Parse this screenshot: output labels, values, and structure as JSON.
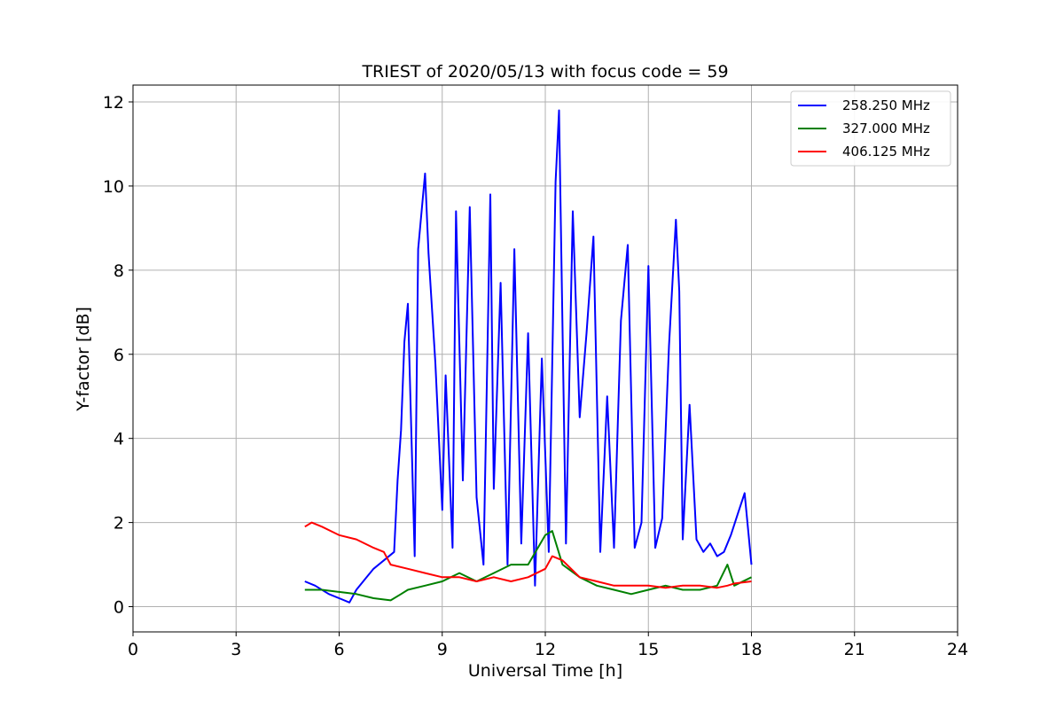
{
  "chart_data": {
    "type": "line",
    "title": "TRIEST of 2020/05/13 with focus code = 59",
    "xlabel": "Universal Time [h]",
    "ylabel": "Y-factor [dB]",
    "xlim": [
      0,
      24
    ],
    "ylim": [
      -0.6,
      12.4
    ],
    "xticks": [
      0,
      3,
      6,
      9,
      12,
      15,
      18,
      21,
      24
    ],
    "yticks": [
      0,
      2,
      4,
      6,
      8,
      10,
      12
    ],
    "xtick_labels": [
      "0",
      "3",
      "6",
      "9",
      "12",
      "15",
      "18",
      "21",
      "24"
    ],
    "ytick_labels": [
      "0",
      "2",
      "4",
      "6",
      "8",
      "10",
      "12"
    ],
    "grid": true,
    "legend_position": "top-right",
    "series": [
      {
        "name": "258.250 MHz",
        "color": "#0000ff",
        "x": [
          5.0,
          5.3,
          5.7,
          6.0,
          6.3,
          6.5,
          6.8,
          7.0,
          7.3,
          7.6,
          7.7,
          7.8,
          7.9,
          8.0,
          8.2,
          8.3,
          8.5,
          8.6,
          8.8,
          9.0,
          9.1,
          9.3,
          9.4,
          9.6,
          9.8,
          10.0,
          10.2,
          10.4,
          10.5,
          10.7,
          10.9,
          11.1,
          11.3,
          11.5,
          11.7,
          11.9,
          12.1,
          12.3,
          12.4,
          12.6,
          12.8,
          13.0,
          13.2,
          13.4,
          13.6,
          13.8,
          14.0,
          14.2,
          14.4,
          14.6,
          14.8,
          15.0,
          15.2,
          15.4,
          15.6,
          15.8,
          15.9,
          16.0,
          16.2,
          16.4,
          16.6,
          16.8,
          17.0,
          17.2,
          17.4,
          17.6,
          17.8,
          18.0
        ],
        "y": [
          0.6,
          0.5,
          0.3,
          0.2,
          0.1,
          0.4,
          0.7,
          0.9,
          1.1,
          1.3,
          3.0,
          4.2,
          6.3,
          7.2,
          1.2,
          8.5,
          10.3,
          8.4,
          5.8,
          2.3,
          5.5,
          1.4,
          9.4,
          3.0,
          9.5,
          2.6,
          1.0,
          9.8,
          2.8,
          7.7,
          1.0,
          8.5,
          1.5,
          6.5,
          0.5,
          5.9,
          1.3,
          10.1,
          11.8,
          1.5,
          9.4,
          4.5,
          6.5,
          8.8,
          1.3,
          5.0,
          1.4,
          6.8,
          8.6,
          1.4,
          2.0,
          8.1,
          1.4,
          2.1,
          6.2,
          9.2,
          7.5,
          1.6,
          4.8,
          1.6,
          1.3,
          1.5,
          1.2,
          1.3,
          1.7,
          2.2,
          2.7,
          1.0
        ]
      },
      {
        "name": "327.000 MHz",
        "color": "#008000",
        "x": [
          5.0,
          5.5,
          6.0,
          6.5,
          7.0,
          7.5,
          7.8,
          8.0,
          8.5,
          9.0,
          9.5,
          10.0,
          10.5,
          11.0,
          11.5,
          12.0,
          12.2,
          12.5,
          13.0,
          13.5,
          14.0,
          14.5,
          15.0,
          15.5,
          16.0,
          16.5,
          17.0,
          17.3,
          17.5,
          18.0
        ],
        "y": [
          0.4,
          0.4,
          0.35,
          0.3,
          0.2,
          0.15,
          0.3,
          0.4,
          0.5,
          0.6,
          0.8,
          0.6,
          0.8,
          1.0,
          1.0,
          1.7,
          1.8,
          1.0,
          0.7,
          0.5,
          0.4,
          0.3,
          0.4,
          0.5,
          0.4,
          0.4,
          0.5,
          1.0,
          0.5,
          0.7
        ]
      },
      {
        "name": "406.125 MHz",
        "color": "#ff0000",
        "x": [
          5.0,
          5.2,
          5.5,
          6.0,
          6.5,
          7.0,
          7.3,
          7.5,
          8.0,
          8.5,
          9.0,
          9.5,
          10.0,
          10.5,
          11.0,
          11.5,
          12.0,
          12.2,
          12.5,
          13.0,
          13.5,
          14.0,
          14.5,
          15.0,
          15.5,
          16.0,
          16.5,
          17.0,
          17.3,
          17.5,
          18.0
        ],
        "y": [
          1.9,
          2.0,
          1.9,
          1.7,
          1.6,
          1.4,
          1.3,
          1.0,
          0.9,
          0.8,
          0.7,
          0.7,
          0.6,
          0.7,
          0.6,
          0.7,
          0.9,
          1.2,
          1.1,
          0.7,
          0.6,
          0.5,
          0.5,
          0.5,
          0.45,
          0.5,
          0.5,
          0.45,
          0.5,
          0.55,
          0.6
        ]
      }
    ]
  }
}
